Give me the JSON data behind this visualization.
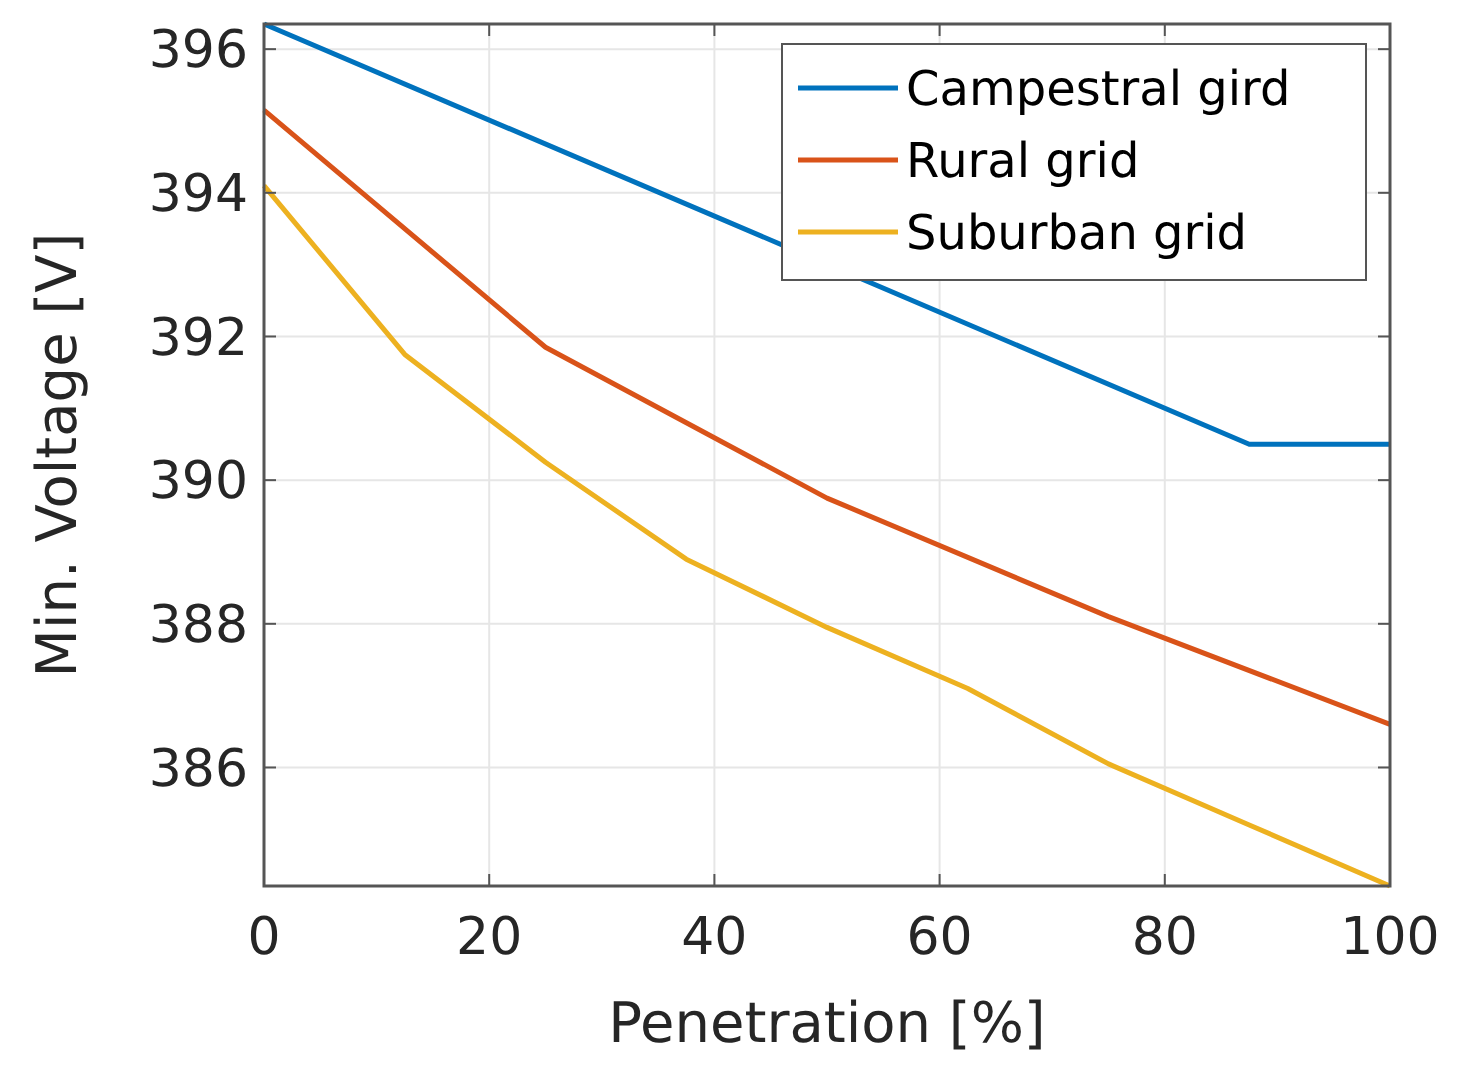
{
  "chart_data": {
    "type": "line",
    "xlabel": "Penetration [%]",
    "ylabel": "Min. Voltage [V]",
    "xlim": [
      0,
      100
    ],
    "xticks": [
      0,
      20,
      40,
      60,
      80,
      100
    ],
    "ylim": [
      384.35,
      396.35
    ],
    "yticks": [
      386,
      388,
      390,
      392,
      394,
      396
    ],
    "grid": true,
    "legend": "top right",
    "marker": "none",
    "line_style": "solid",
    "series": [
      {
        "name": "Campestral gird",
        "color": "#0072bd",
        "x": [
          0,
          87.5,
          100
        ],
        "values": [
          396.35,
          390.5,
          390.5
        ]
      },
      {
        "name": "Rural grid",
        "color": "#d95319",
        "x": [
          0,
          25,
          50,
          75,
          100
        ],
        "values": [
          395.15,
          391.85,
          389.75,
          388.1,
          386.6
        ]
      },
      {
        "name": "Suburban grid",
        "color": "#edb120",
        "x": [
          0,
          12.5,
          25,
          37.5,
          50,
          62.5,
          75,
          87.5,
          100
        ],
        "values": [
          394.1,
          391.75,
          390.25,
          388.9,
          387.95,
          387.1,
          386.05,
          385.2,
          384.35
        ]
      }
    ]
  }
}
